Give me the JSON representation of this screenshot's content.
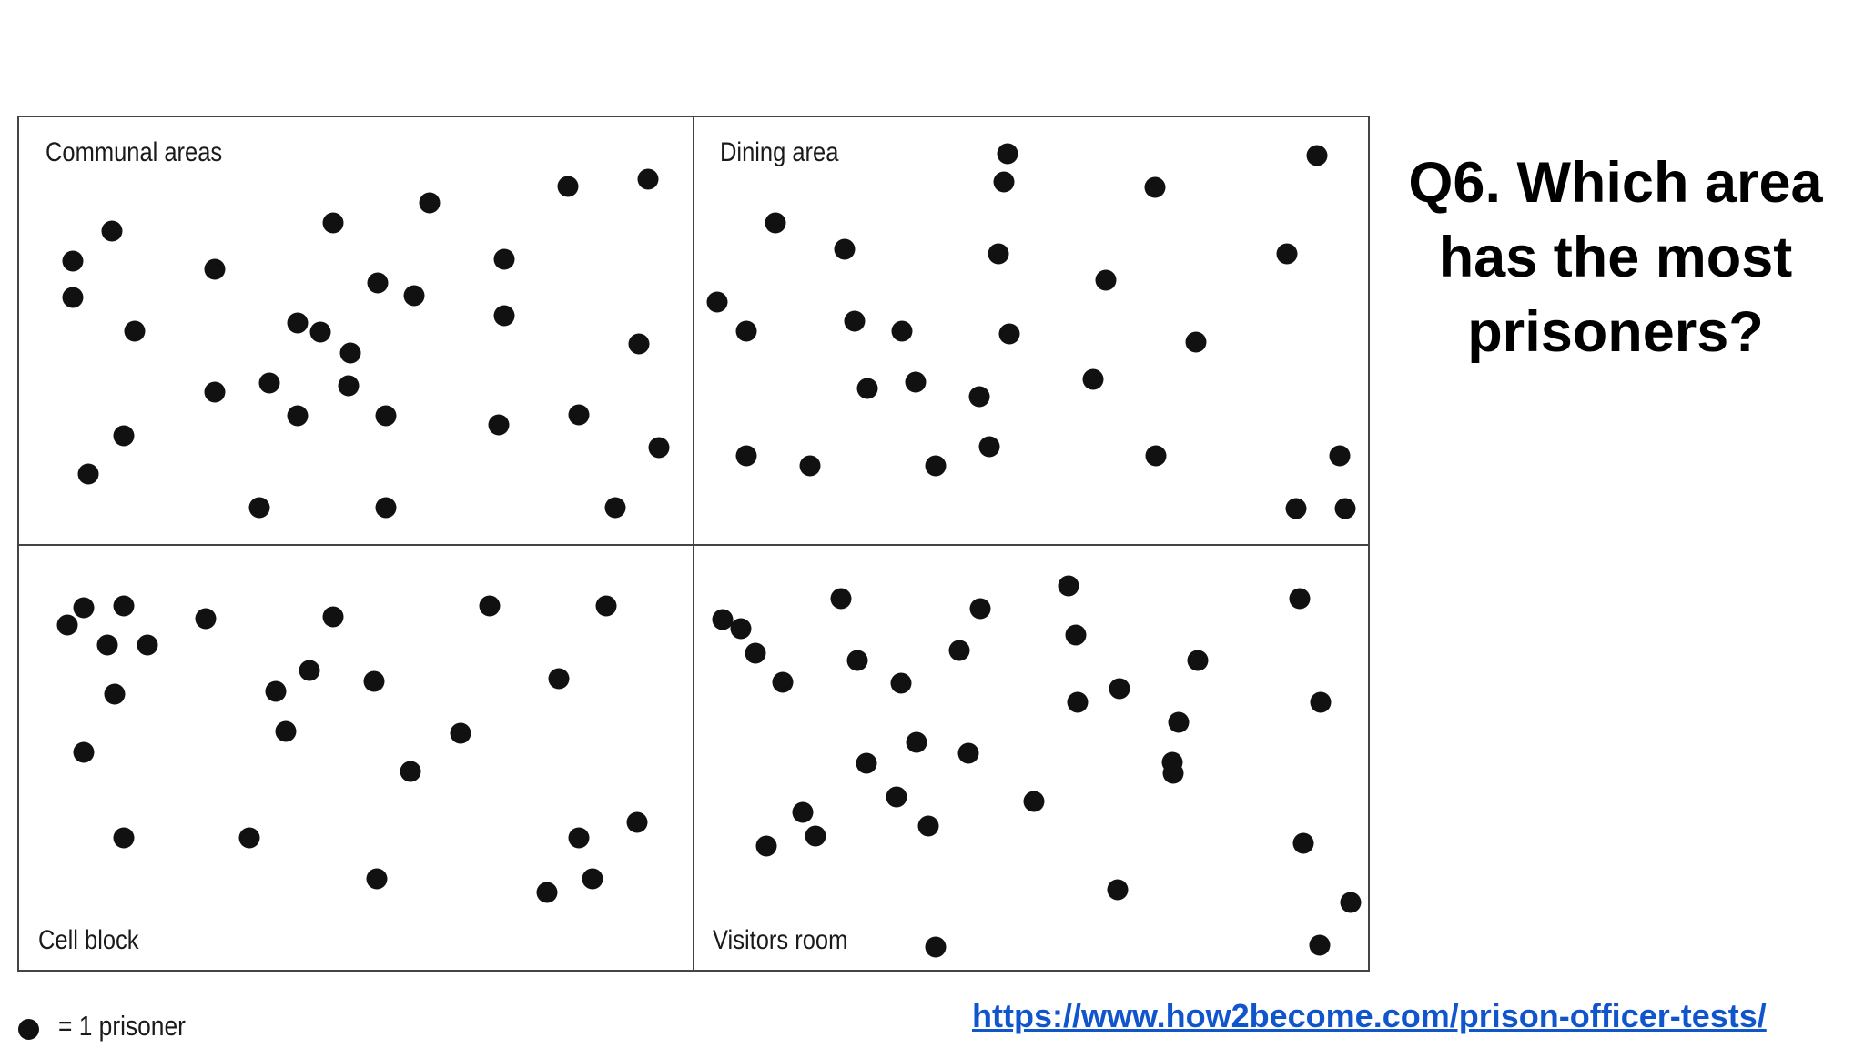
{
  "question": "Q6. Which area has the most prisoners?",
  "legend": {
    "label": "= 1 prisoner"
  },
  "source_link": "https://www.how2become.com/prison-officer-tests/",
  "dot_color": "#111111",
  "areas": [
    {
      "name": "Communal areas",
      "dot_count": 30
    },
    {
      "name": "Dining area",
      "dot_count": 27
    },
    {
      "name": "Cell block",
      "dot_count": 25
    },
    {
      "name": "Visitors room",
      "dot_count": 33
    }
  ]
}
